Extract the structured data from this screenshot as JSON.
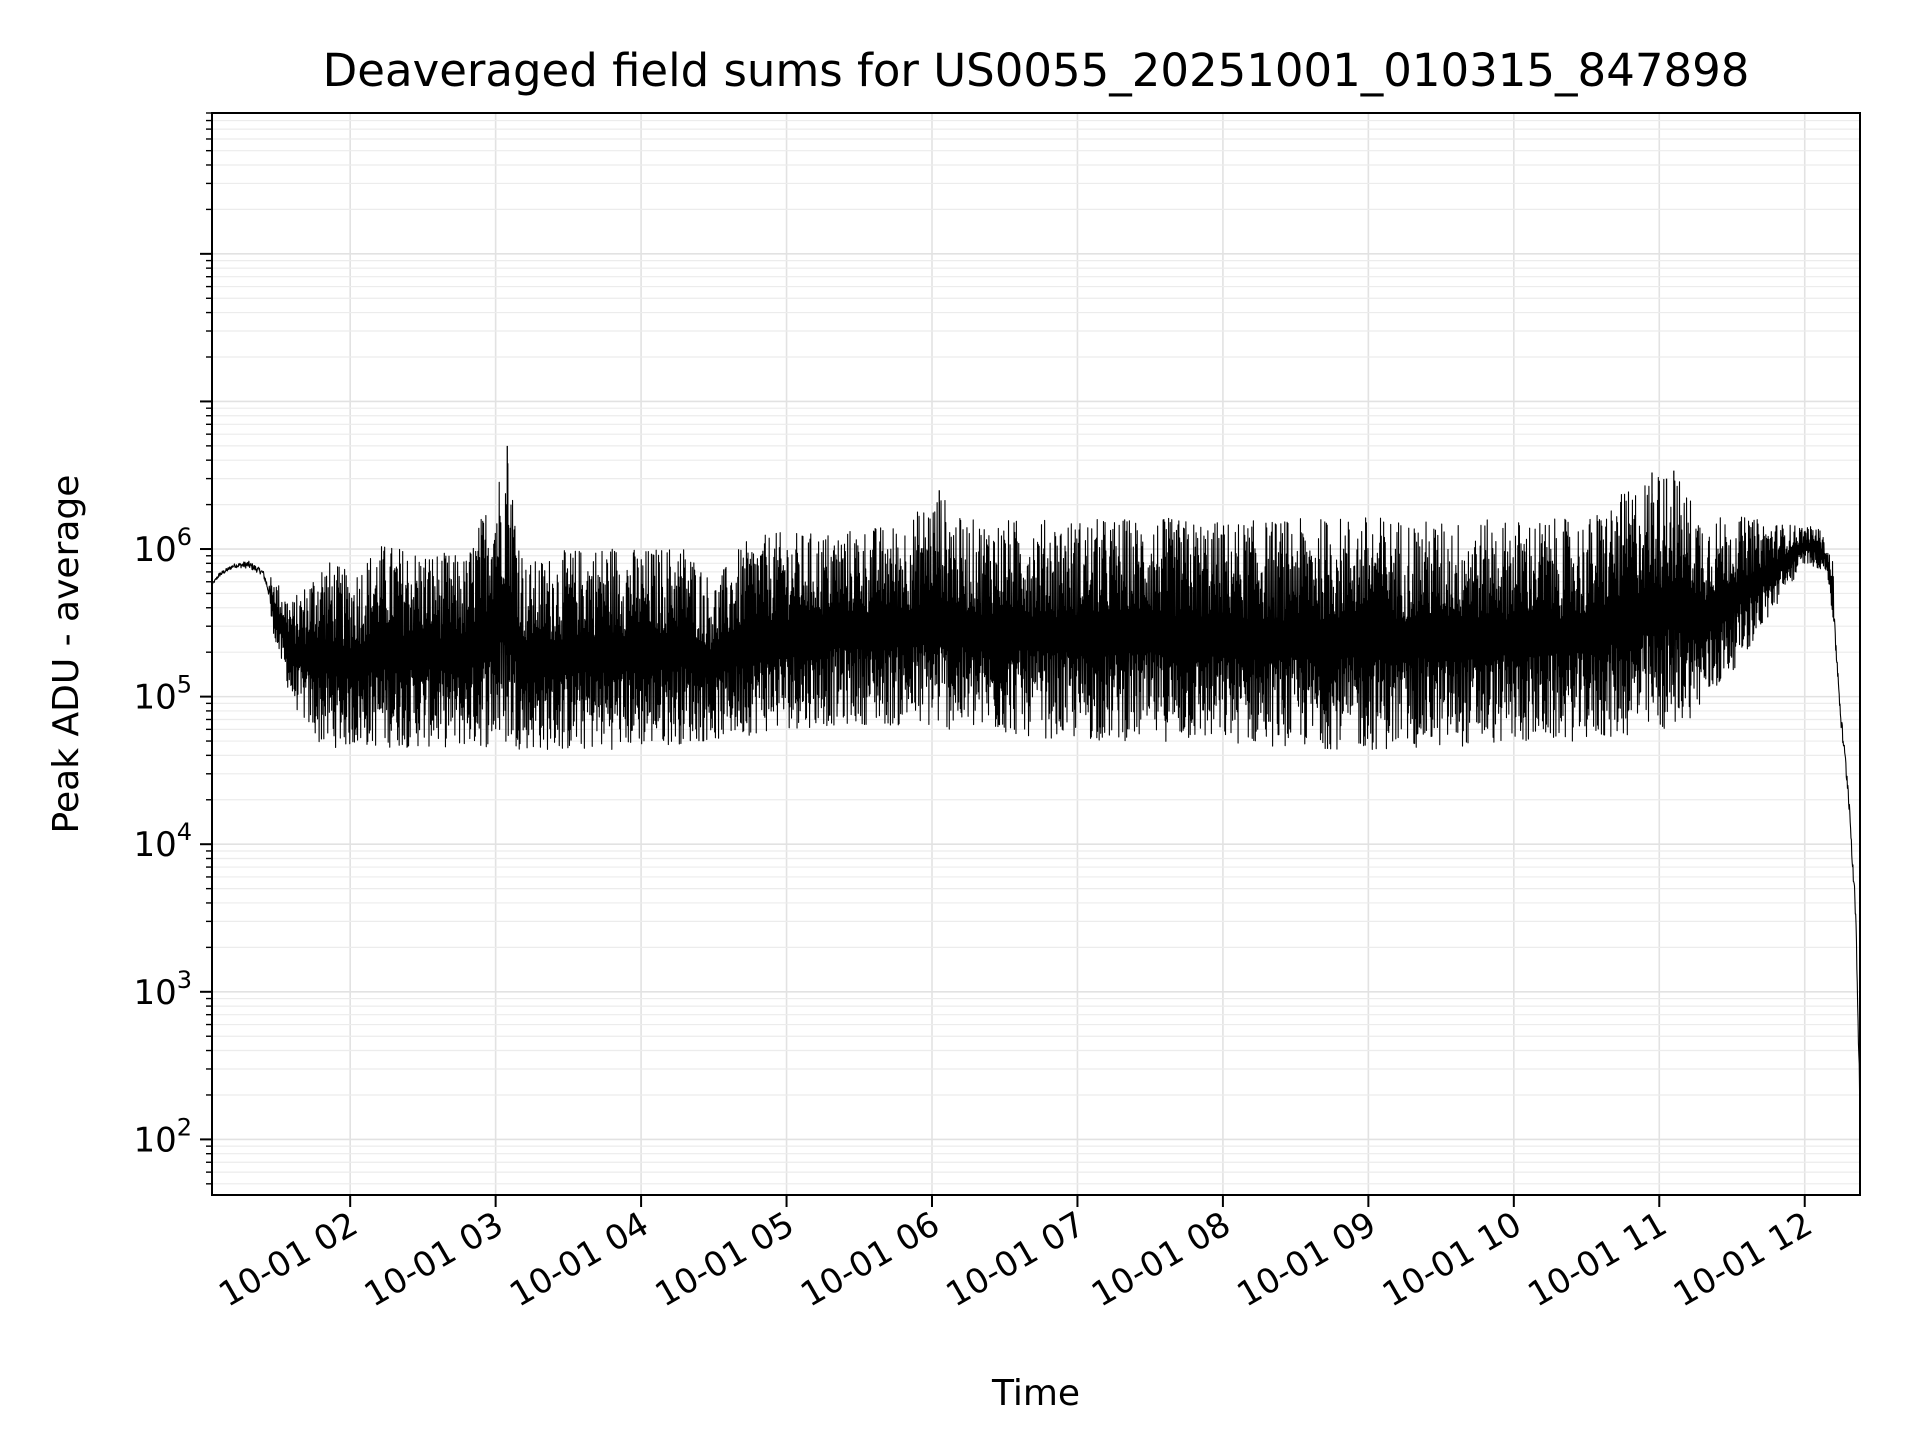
{
  "chart_data": {
    "type": "line",
    "title": "Deaveraged field sums for US0055_20251001_010315_847898",
    "xlabel": "Time",
    "ylabel": "Peak ADU - average",
    "y_scale": "log",
    "ylim": [
      42,
      900000000
    ],
    "xlim_hours": [
      1.05,
      12.38
    ],
    "x_ticks": [
      {
        "label": "10-01 02",
        "hour": 2
      },
      {
        "label": "10-01 03",
        "hour": 3
      },
      {
        "label": "10-01 04",
        "hour": 4
      },
      {
        "label": "10-01 05",
        "hour": 5
      },
      {
        "label": "10-01 06",
        "hour": 6
      },
      {
        "label": "10-01 07",
        "hour": 7
      },
      {
        "label": "10-01 08",
        "hour": 8
      },
      {
        "label": "10-01 09",
        "hour": 9
      },
      {
        "label": "10-01 10",
        "hour": 10
      },
      {
        "label": "10-01 11",
        "hour": 11
      },
      {
        "label": "10-01 12",
        "hour": 12
      }
    ],
    "y_ticks": [
      {
        "base": "10",
        "exp": "2",
        "value": 100
      },
      {
        "base": "10",
        "exp": "3",
        "value": 1000
      },
      {
        "base": "10",
        "exp": "4",
        "value": 10000
      },
      {
        "base": "10",
        "exp": "5",
        "value": 100000
      },
      {
        "base": "10",
        "exp": "6",
        "value": 1000000
      }
    ],
    "grid": true,
    "series": [
      {
        "name": "deaveraged field sum",
        "color": "#000000",
        "description_points": "envelope approximation: upper and lower trace of a densely oscillating signal",
        "upper_envelope": [
          [
            1.05,
            600000
          ],
          [
            1.1,
            750000
          ],
          [
            1.2,
            850000
          ],
          [
            1.3,
            950000
          ],
          [
            1.4,
            800000
          ],
          [
            1.5,
            600000
          ],
          [
            1.6,
            450000
          ],
          [
            1.7,
            600000
          ],
          [
            1.8,
            900000
          ],
          [
            2.0,
            700000
          ],
          [
            2.2,
            1100000
          ],
          [
            2.5,
            1000000
          ],
          [
            2.8,
            900000
          ],
          [
            3.08,
            5000000
          ],
          [
            3.2,
            800000
          ],
          [
            3.5,
            1000000
          ],
          [
            3.8,
            1100000
          ],
          [
            4.0,
            1000000
          ],
          [
            4.3,
            1100000
          ],
          [
            4.5,
            600000
          ],
          [
            4.7,
            1100000
          ],
          [
            4.9,
            1300000
          ],
          [
            5.2,
            1300000
          ],
          [
            5.5,
            1400000
          ],
          [
            5.8,
            1500000
          ],
          [
            6.05,
            2500000
          ],
          [
            6.2,
            1600000
          ],
          [
            6.5,
            1600000
          ],
          [
            7.0,
            1600000
          ],
          [
            7.5,
            1650000
          ],
          [
            8.0,
            1550000
          ],
          [
            8.5,
            1600000
          ],
          [
            9.0,
            1700000
          ],
          [
            9.5,
            1550000
          ],
          [
            10.0,
            1600000
          ],
          [
            10.5,
            1600000
          ],
          [
            10.95,
            3300000
          ],
          [
            11.1,
            3400000
          ],
          [
            11.3,
            1700000
          ],
          [
            11.6,
            1650000
          ],
          [
            11.8,
            1500000
          ],
          [
            12.1,
            1400000
          ],
          [
            12.2,
            800000
          ]
        ],
        "lower_envelope": [
          [
            1.05,
            550000
          ],
          [
            1.2,
            700000
          ],
          [
            1.4,
            600000
          ],
          [
            1.5,
            200000
          ],
          [
            1.6,
            90000
          ],
          [
            1.8,
            45000
          ],
          [
            2.0,
            45000
          ],
          [
            2.5,
            45000
          ],
          [
            3.0,
            45000
          ],
          [
            3.5,
            42000
          ],
          [
            4.0,
            45000
          ],
          [
            4.5,
            50000
          ],
          [
            5.0,
            60000
          ],
          [
            5.5,
            65000
          ],
          [
            6.0,
            60000
          ],
          [
            6.5,
            55000
          ],
          [
            7.0,
            50000
          ],
          [
            7.5,
            50000
          ],
          [
            8.0,
            48000
          ],
          [
            8.5,
            45000
          ],
          [
            9.0,
            43000
          ],
          [
            9.5,
            45000
          ],
          [
            10.0,
            48000
          ],
          [
            10.5,
            50000
          ],
          [
            11.0,
            55000
          ],
          [
            11.3,
            80000
          ],
          [
            11.6,
            200000
          ],
          [
            11.8,
            400000
          ],
          [
            12.0,
            800000
          ],
          [
            12.15,
            700000
          ],
          [
            12.2,
            300000
          ],
          [
            12.25,
            60000
          ],
          [
            12.3,
            20000
          ],
          [
            12.35,
            3000
          ],
          [
            12.38,
            150
          ]
        ]
      }
    ]
  }
}
